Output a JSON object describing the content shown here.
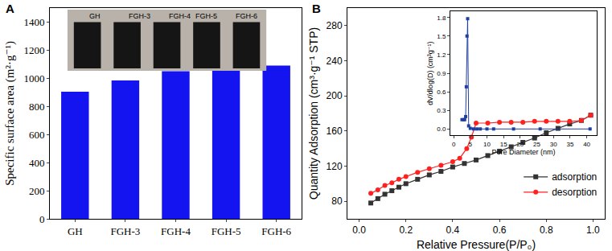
{
  "chart_data": [
    {
      "type": "bar",
      "title": "A",
      "categories": [
        "GH",
        "FGH-3",
        "FGH-4",
        "FGH-5",
        "FGH-6"
      ],
      "values": [
        905,
        985,
        1050,
        1075,
        1090
      ],
      "color": "#1414f0",
      "y_label": "Specific surface area (m²·g⁻¹)",
      "ylim": [
        0,
        1500
      ],
      "yticks": [
        0,
        200,
        400,
        600,
        800,
        1000,
        1200,
        1400
      ],
      "annotations": [
        "GH",
        "FGH-3",
        "FGH-4",
        "FGH-5",
        "FGH-6"
      ],
      "grid": false
    },
    {
      "type": "line",
      "title": "B",
      "x_label": "Relative Pressure(P/P₀)",
      "y_label": "Quantity Adsorption (cm³·g⁻¹ STP)",
      "xlim": [
        -0.05,
        1.05
      ],
      "xticks": [
        {
          "value": 0,
          "label": "0.0"
        },
        {
          "value": 0.2,
          "label": "0.2"
        },
        {
          "value": 0.4,
          "label": "0.4"
        },
        {
          "value": 0.6,
          "label": "0.6"
        },
        {
          "value": 0.8,
          "label": "0.8"
        },
        {
          "value": 1,
          "label": "1.0"
        }
      ],
      "ylim": [
        60,
        300
      ],
      "yticks": [
        80,
        120,
        160,
        200,
        240,
        280
      ],
      "legend": "lower right",
      "grid": false,
      "series": [
        {
          "name": "adsorption",
          "color": "#333333",
          "marker": "square",
          "line_style": "solid",
          "x": [
            0.05,
            0.08,
            0.11,
            0.14,
            0.17,
            0.2,
            0.25,
            0.3,
            0.35,
            0.4,
            0.45,
            0.5,
            0.55,
            0.6,
            0.65,
            0.7,
            0.75,
            0.8,
            0.85,
            0.9,
            0.95,
            0.99
          ],
          "values": [
            78,
            83,
            88,
            92,
            96,
            100,
            105,
            110,
            114,
            119,
            123,
            127,
            132,
            137,
            142,
            147,
            152,
            158,
            163,
            168,
            172,
            178
          ]
        },
        {
          "name": "desorption",
          "color": "#ff2020",
          "marker": "circle",
          "line_style": "solid",
          "x": [
            0.05,
            0.08,
            0.11,
            0.14,
            0.17,
            0.2,
            0.25,
            0.3,
            0.35,
            0.4,
            0.43,
            0.46,
            0.48,
            0.5,
            0.55,
            0.6,
            0.65,
            0.7,
            0.75,
            0.8,
            0.85,
            0.9,
            0.95,
            0.99
          ],
          "values": [
            89,
            93,
            98,
            101,
            105,
            108,
            113,
            117,
            121,
            125,
            129,
            140,
            153,
            169,
            169,
            170,
            170,
            170,
            171,
            171,
            171,
            171,
            172,
            178
          ]
        }
      ]
    },
    {
      "type": "line",
      "x_label": "Pore Diameter (nm)",
      "y_label": "dV/dlog(D) (cm³g⁻¹)",
      "xlim": [
        -1,
        43
      ],
      "xticks": [
        0,
        5,
        10,
        15,
        20,
        25,
        30,
        35,
        40
      ],
      "ylim": [
        -0.1,
        1.9
      ],
      "yticks": [
        {
          "value": 0,
          "label": "0.0"
        },
        {
          "value": 0.3,
          "label": "0.3"
        },
        {
          "value": 0.6,
          "label": "0.6"
        },
        {
          "value": 0.9,
          "label": "0.9"
        },
        {
          "value": 1.2,
          "label": "1.2"
        },
        {
          "value": 1.5,
          "label": "1.5"
        },
        {
          "value": 1.8,
          "label": "1.8"
        }
      ],
      "grid": false,
      "series": [
        {
          "color": "#1f3fa0",
          "marker": "square",
          "line_style": "solid",
          "x": [
            2.5,
            3,
            3.3,
            3.6,
            3.8,
            4.0,
            4.2,
            4.5,
            5,
            6,
            7,
            8,
            10,
            12,
            18,
            26,
            41
          ],
          "values": [
            0.15,
            0.15,
            0.15,
            0.2,
            0.68,
            1.5,
            1.78,
            0.05,
            0.01,
            0,
            0,
            0,
            0,
            0,
            0,
            0,
            0
          ]
        }
      ]
    }
  ]
}
